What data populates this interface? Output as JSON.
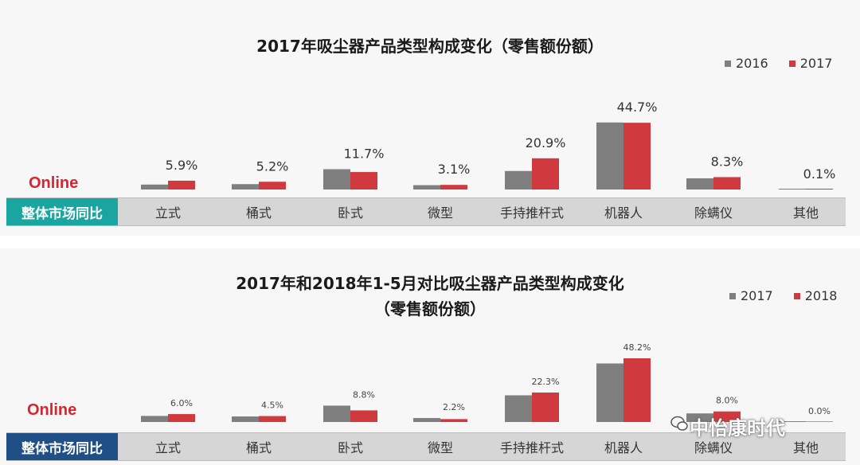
{
  "colors": {
    "series_a": "#7f7f7f",
    "series_b": "#d03a3f",
    "header1": "#1aa5a0",
    "header2": "#1f4f86",
    "online": "#d9232e"
  },
  "row_header": "整体市场同比",
  "online_label": "Online",
  "watermark": "中怡康时代",
  "chart_data": [
    {
      "type": "bar",
      "title": "2017年吸尘器产品类型构成变化（零售额份额）",
      "categories": [
        "立式",
        "桶式",
        "卧式",
        "微型",
        "手持推杆式",
        "机器人",
        "除螨仪",
        "其他"
      ],
      "series": [
        {
          "name": "2016",
          "values": [
            3.3,
            3.6,
            13.6,
            2.9,
            12.4,
            44.9,
            7.5,
            0.1
          ]
        },
        {
          "name": "2017",
          "values": [
            5.9,
            5.2,
            11.7,
            3.1,
            20.9,
            44.7,
            8.3,
            0.1
          ]
        }
      ],
      "labels": [
        "5.9%",
        "5.2%",
        "11.7%",
        "3.1%",
        "20.9%",
        "44.7%",
        "8.3%",
        "0.1%"
      ],
      "ylim": [
        0,
        50
      ],
      "legend": "top-right"
    },
    {
      "type": "bar",
      "title_line1": "2017年和2018年1-5月对比吸尘器产品类型构成变化",
      "title_line2": "（零售额份额）",
      "categories": [
        "立式",
        "桶式",
        "卧式",
        "微型",
        "手持推杆式",
        "机器人",
        "除螨仪",
        "其他"
      ],
      "series": [
        {
          "name": "2017",
          "values": [
            4.6,
            4.2,
            12.4,
            3.0,
            20.2,
            44.3,
            6.5,
            0.1
          ]
        },
        {
          "name": "2018",
          "values": [
            6.0,
            4.5,
            8.8,
            2.2,
            22.3,
            48.2,
            8.0,
            0.0
          ]
        }
      ],
      "labels": [
        "6.0%",
        "4.5%",
        "8.8%",
        "2.2%",
        "22.3%",
        "48.2%",
        "8.0%",
        "0.0%"
      ],
      "ylim": [
        0,
        50
      ],
      "legend": "top-right"
    }
  ]
}
